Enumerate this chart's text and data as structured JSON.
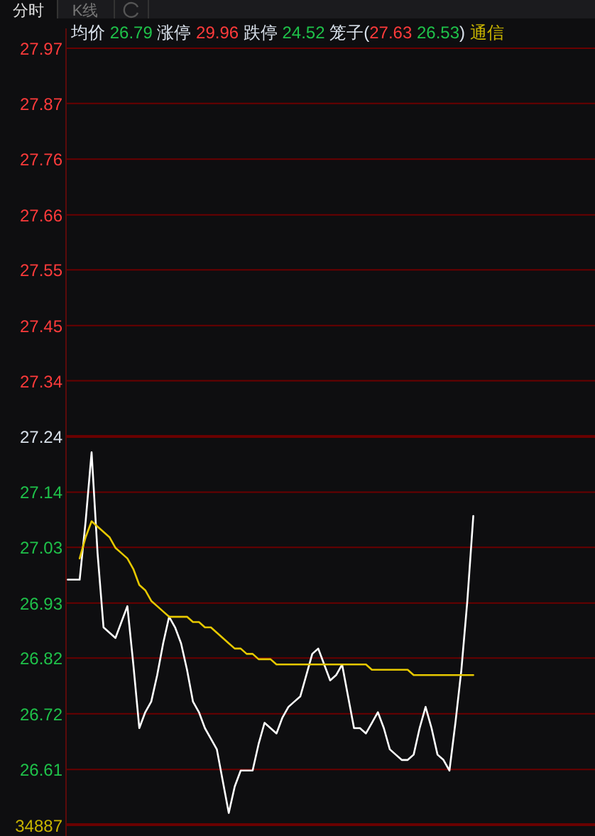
{
  "chart_data": {
    "type": "line",
    "annotations": [
      "分时",
      "K线",
      "均价 26.79 涨停 29.96 跌停 24.52 笼子(27.63 26.53) 通信",
      "34887"
    ],
    "categories": [
      null,
      null,
      null,
      null,
      null,
      null,
      null,
      null,
      null,
      null,
      null,
      null,
      null,
      null,
      null,
      null,
      null,
      null,
      null,
      null,
      null,
      null,
      null,
      null,
      null,
      null,
      null,
      null,
      null,
      null,
      null,
      null,
      null,
      null,
      null,
      null,
      null,
      null,
      null,
      null,
      null,
      null,
      null,
      null,
      null,
      null,
      null,
      null,
      null,
      null,
      null,
      null,
      null,
      null,
      null,
      null,
      null,
      null,
      null,
      null,
      null,
      null,
      null,
      null,
      null,
      null,
      null,
      null,
      null
    ],
    "tick_labels": "y",
    "ylim": [
      26.508,
      27.972
    ],
    "yticks": [
      {
        "value": 27.972,
        "label": "27.97"
      },
      {
        "value": 27.868,
        "label": "27.87"
      },
      {
        "value": 27.763,
        "label": "27.76"
      },
      {
        "value": 27.658,
        "label": "27.66"
      },
      {
        "value": 27.554,
        "label": "27.55"
      },
      {
        "value": 27.449,
        "label": "27.45"
      },
      {
        "value": 27.345,
        "label": "27.34"
      },
      {
        "value": 27.24,
        "label": "27.24"
      },
      {
        "value": 27.135,
        "label": "27.14"
      },
      {
        "value": 27.031,
        "label": "27.03"
      },
      {
        "value": 26.926,
        "label": "26.93"
      },
      {
        "value": 26.822,
        "label": "26.82"
      },
      {
        "value": 26.717,
        "label": "26.72"
      },
      {
        "value": 26.612,
        "label": "26.61"
      }
    ],
    "grid": "y",
    "ref_lines": [
      {
        "axis": "y",
        "value": 27.24,
        "color": "#6a0000"
      }
    ],
    "series": [
      {
        "color": "#ffffff",
        "values": [
          26.97,
          26.97,
          26.97,
          27.08,
          27.21,
          27.02,
          26.88,
          26.87,
          26.86,
          26.89,
          26.92,
          26.81,
          26.69,
          26.72,
          26.74,
          26.79,
          26.85,
          26.9,
          26.88,
          26.85,
          26.8,
          26.74,
          26.72,
          26.69,
          26.67,
          26.65,
          26.59,
          26.53,
          26.58,
          26.61,
          26.61,
          26.61,
          26.66,
          26.7,
          26.69,
          26.68,
          26.71,
          26.73,
          26.74,
          26.75,
          26.79,
          26.83,
          26.84,
          26.81,
          26.78,
          26.79,
          26.81,
          26.75,
          26.69,
          26.69,
          26.68,
          26.7,
          26.72,
          26.69,
          26.65,
          26.64,
          26.63,
          26.63,
          26.64,
          26.69,
          26.73,
          26.69,
          26.64,
          26.63,
          26.61,
          26.7,
          26.8,
          26.93,
          27.09
        ]
      },
      {
        "color": "#e6c800",
        "values": [
          null,
          null,
          27.01,
          27.05,
          27.08,
          27.07,
          27.06,
          27.05,
          27.03,
          27.02,
          27.01,
          26.99,
          26.96,
          26.95,
          26.93,
          26.92,
          26.91,
          26.9,
          26.9,
          26.9,
          26.9,
          26.89,
          26.89,
          26.88,
          26.88,
          26.87,
          26.86,
          26.85,
          26.84,
          26.84,
          26.83,
          26.83,
          26.82,
          26.82,
          26.82,
          26.81,
          26.81,
          26.81,
          26.81,
          26.81,
          26.81,
          26.81,
          26.81,
          26.81,
          26.81,
          26.81,
          26.81,
          26.81,
          26.81,
          26.81,
          26.81,
          26.8,
          26.8,
          26.8,
          26.8,
          26.8,
          26.8,
          26.8,
          26.79,
          26.79,
          26.79,
          26.79,
          26.79,
          26.79,
          26.79,
          26.79,
          26.79,
          26.79,
          26.79
        ]
      }
    ]
  }
}
